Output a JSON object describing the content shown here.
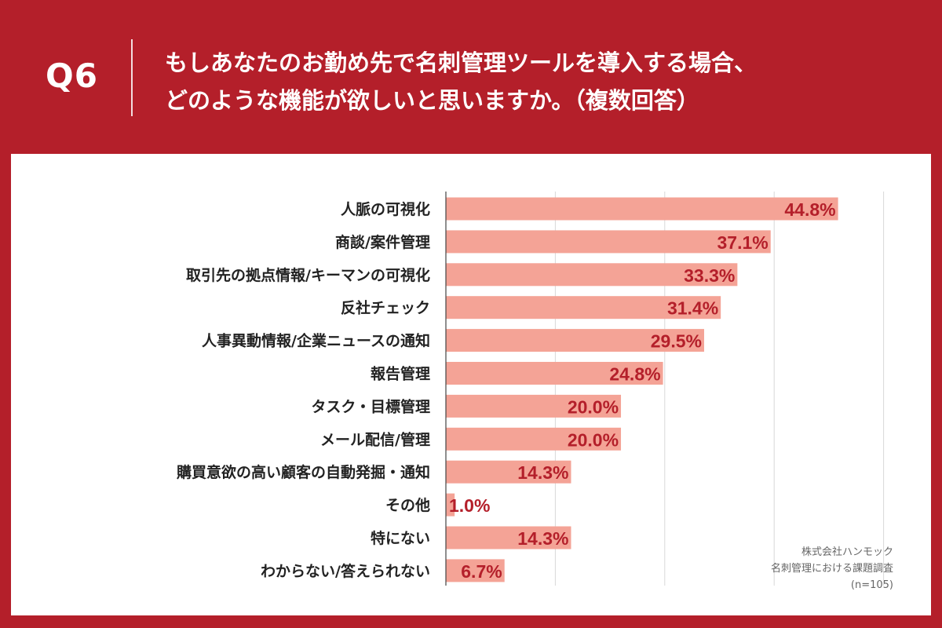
{
  "header": {
    "question_number": "Q6",
    "title_line1": "もしあなたのお勤め先で名刺管理ツールを導入する場合、",
    "title_line2": "どのような機能が欲しいと思いますか。（複数回答）"
  },
  "colors": {
    "background": "#b41f2a",
    "panel": "#ffffff",
    "bar": "#f4a396",
    "value_label": "#b41f2a",
    "grid": "#d8d8d8"
  },
  "chart_data": {
    "type": "bar",
    "orientation": "horizontal",
    "categories": [
      "人脈の可視化",
      "商談/案件管理",
      "取引先の拠点情報/キーマンの可視化",
      "反社チェック",
      "人事異動情報/企業ニュースの通知",
      "報告管理",
      "タスク・目標管理",
      "メール配信/管理",
      "購買意欲の高い顧客の自動発掘・通知",
      "その他",
      "特にない",
      "わからない/答えられない"
    ],
    "values": [
      44.8,
      37.1,
      33.3,
      31.4,
      29.5,
      24.8,
      20.0,
      20.0,
      14.3,
      1.0,
      14.3,
      6.7
    ],
    "value_labels": [
      "44.8%",
      "37.1%",
      "33.3%",
      "31.4%",
      "29.5%",
      "24.8%",
      "20.0%",
      "20.0%",
      "14.3%",
      "1.0%",
      "14.3%",
      "6.7%"
    ],
    "unit": "%",
    "xlim": [
      0,
      50
    ],
    "grid_step": 12.5,
    "grid": true,
    "legend": "none"
  },
  "source": {
    "company": "株式会社ハンモック",
    "survey": "名刺管理における課題調査",
    "sample": "(n=105)"
  }
}
